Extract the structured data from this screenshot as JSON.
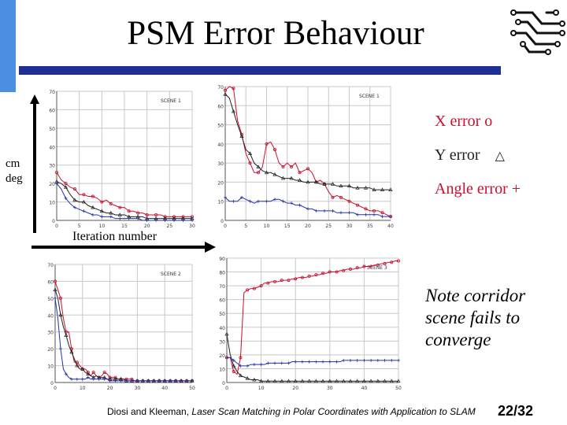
{
  "slide": {
    "title": "PSM Error Behaviour",
    "accent_color": "#4a8fe0",
    "bar_color": "#1f2f96",
    "legend": {
      "x_error": "X error o",
      "y_error": "Y error",
      "y_error_symbol": "△",
      "angle_error": "Angle error +"
    },
    "unit_label_line1": "cm",
    "unit_label_line2": "deg",
    "iteration_label": "Iteration number",
    "note": "Note corridor scene fails to converge",
    "footer_prefix": "Diosi and Kleeman, ",
    "footer_title": "Laser Scan Matching in Polar Coordinates with Application to SLAM",
    "page_number": "22/32",
    "logo_icon": "circuit-logo-icon"
  },
  "chart_data": [
    {
      "type": "line",
      "title": "SCENE 1",
      "x": [
        0,
        1,
        2,
        3,
        4,
        5,
        6,
        7,
        8,
        9,
        10,
        11,
        12,
        13,
        14,
        15,
        16,
        17,
        18,
        19,
        20,
        21,
        22,
        23,
        24,
        25,
        26,
        27,
        28,
        29,
        30
      ],
      "series": [
        {
          "name": "X error",
          "values": [
            26,
            22,
            20,
            18,
            17,
            14,
            14,
            13,
            13,
            12,
            10,
            11,
            9,
            8,
            7,
            7,
            5,
            5,
            4,
            4,
            3,
            3,
            3,
            3,
            2,
            2,
            2,
            2,
            2,
            2,
            2
          ]
        },
        {
          "name": "Y error",
          "values": [
            21,
            20,
            18,
            14,
            11,
            10,
            10,
            8,
            7,
            6,
            5,
            4,
            4,
            3,
            3,
            3,
            2,
            2,
            2,
            2,
            1,
            1,
            1,
            1,
            1,
            1,
            1,
            1,
            1,
            1,
            1
          ]
        },
        {
          "name": "Angle error",
          "values": [
            20,
            17,
            12,
            9,
            7,
            6,
            5,
            4,
            3,
            3,
            2,
            2,
            2,
            1,
            1,
            1,
            1,
            1,
            1,
            0,
            0,
            0,
            0,
            0,
            0,
            0,
            0,
            0,
            0,
            0,
            0
          ]
        }
      ],
      "ylim": [
        0,
        70
      ],
      "xticks": [
        "0",
        "5",
        "10",
        "15",
        "20",
        "25",
        "30"
      ],
      "yticks": [
        "0",
        "10",
        "20",
        "30",
        "40",
        "50",
        "60",
        "70"
      ],
      "grid": true
    },
    {
      "type": "line",
      "title": "SCENE 1",
      "x": [
        0,
        1,
        2,
        3,
        4,
        5,
        6,
        7,
        8,
        9,
        10,
        11,
        12,
        13,
        14,
        15,
        16,
        17,
        18,
        19,
        20,
        21,
        22,
        23,
        24,
        25,
        26,
        27,
        28,
        29,
        30,
        31,
        32,
        33,
        34,
        35,
        36,
        37,
        38,
        39,
        40
      ],
      "series": [
        {
          "name": "X error",
          "values": [
            68,
            70,
            69,
            52,
            45,
            35,
            30,
            25,
            25,
            28,
            40,
            41,
            37,
            30,
            28,
            30,
            28,
            30,
            25,
            26,
            27,
            25,
            20,
            21,
            19,
            15,
            12,
            13,
            12,
            11,
            10,
            9,
            8,
            7,
            6,
            5,
            5,
            5,
            4,
            3,
            2
          ]
        },
        {
          "name": "Y error",
          "values": [
            66,
            64,
            57,
            50,
            44,
            37,
            35,
            30,
            28,
            26,
            25,
            25,
            24,
            23,
            22,
            22,
            22,
            21,
            21,
            20,
            20,
            20,
            20,
            19,
            19,
            19,
            19,
            18,
            18,
            18,
            18,
            17,
            17,
            17,
            17,
            17,
            16,
            16,
            16,
            16,
            16
          ]
        },
        {
          "name": "Angle error",
          "values": [
            12,
            10,
            10,
            10,
            12,
            11,
            10,
            9,
            10,
            10,
            10,
            10,
            11,
            11,
            10,
            9,
            9,
            8,
            8,
            7,
            6,
            6,
            5,
            5,
            5,
            5,
            5,
            4,
            4,
            4,
            4,
            4,
            3,
            3,
            3,
            3,
            3,
            3,
            2,
            2,
            2
          ]
        }
      ],
      "ylim": [
        0,
        70
      ],
      "xticks": [
        "0",
        "5",
        "10",
        "15",
        "20",
        "25",
        "30",
        "35",
        "40"
      ],
      "yticks": [
        "0",
        "10",
        "20",
        "30",
        "40",
        "50",
        "60",
        "70"
      ],
      "grid": true
    },
    {
      "type": "line",
      "title": "SCENE 2",
      "x": [
        0,
        1,
        2,
        3,
        4,
        5,
        6,
        7,
        8,
        9,
        10,
        11,
        12,
        13,
        14,
        15,
        16,
        17,
        18,
        19,
        20,
        21,
        22,
        23,
        24,
        25,
        26,
        27,
        28,
        29,
        30,
        31,
        32,
        33,
        34,
        35,
        36,
        37,
        38,
        39,
        40,
        41,
        42,
        43,
        44,
        45,
        46,
        47,
        48,
        49,
        50
      ],
      "series": [
        {
          "name": "X error",
          "values": [
            60,
            55,
            50,
            38,
            30,
            30,
            20,
            12,
            12,
            10,
            8,
            8,
            6,
            4,
            6,
            4,
            3,
            4,
            6,
            5,
            3,
            3,
            3,
            2,
            2,
            2,
            2,
            2,
            2,
            1,
            1,
            1,
            1,
            1,
            1,
            1,
            1,
            1,
            1,
            1,
            1,
            1,
            1,
            1,
            1,
            1,
            1,
            1,
            1,
            1,
            1
          ]
        },
        {
          "name": "Y error",
          "values": [
            55,
            50,
            40,
            33,
            28,
            22,
            18,
            14,
            10,
            8,
            8,
            6,
            5,
            4,
            3,
            4,
            3,
            3,
            3,
            2,
            2,
            2,
            2,
            2,
            2,
            2,
            1,
            1,
            1,
            1,
            1,
            1,
            1,
            1,
            1,
            1,
            1,
            1,
            1,
            1,
            1,
            1,
            1,
            1,
            1,
            1,
            1,
            1,
            1,
            1,
            1
          ]
        },
        {
          "name": "Angle error",
          "values": [
            50,
            38,
            20,
            8,
            5,
            3,
            2,
            2,
            2,
            2,
            2,
            2,
            3,
            2,
            2,
            2,
            2,
            2,
            2,
            2,
            1,
            1,
            1,
            1,
            1,
            1,
            1,
            1,
            1,
            1,
            1,
            1,
            1,
            1,
            1,
            1,
            1,
            1,
            1,
            1,
            1,
            1,
            1,
            1,
            1,
            1,
            1,
            1,
            1,
            1,
            1
          ]
        }
      ],
      "ylim": [
        0,
        70
      ],
      "xticks": [
        "0",
        "10",
        "20",
        "30",
        "40",
        "50"
      ],
      "yticks": [
        "0",
        "10",
        "20",
        "30",
        "40",
        "50",
        "60",
        "70"
      ],
      "grid": true
    },
    {
      "type": "line",
      "title": "SCENE 3",
      "x": [
        0,
        1,
        2,
        3,
        4,
        5,
        6,
        7,
        8,
        9,
        10,
        11,
        12,
        13,
        14,
        15,
        16,
        17,
        18,
        19,
        20,
        21,
        22,
        23,
        24,
        25,
        26,
        27,
        28,
        29,
        30,
        31,
        32,
        33,
        34,
        35,
        36,
        37,
        38,
        39,
        40,
        41,
        42,
        43,
        44,
        45,
        46,
        47,
        48,
        49,
        50
      ],
      "series": [
        {
          "name": "X error",
          "values": [
            18,
            18,
            8,
            6,
            18,
            65,
            67,
            68,
            68,
            69,
            70,
            72,
            72,
            73,
            73,
            73,
            74,
            74,
            74,
            75,
            75,
            76,
            76,
            76,
            77,
            77,
            78,
            78,
            79,
            79,
            80,
            80,
            80,
            81,
            81,
            82,
            82,
            82,
            83,
            83,
            84,
            84,
            84,
            85,
            85,
            86,
            86,
            87,
            87,
            88,
            88
          ]
        },
        {
          "name": "Y error",
          "values": [
            35,
            20,
            12,
            8,
            5,
            4,
            3,
            2,
            2,
            2,
            1,
            1,
            1,
            1,
            1,
            1,
            1,
            1,
            1,
            1,
            1,
            1,
            1,
            1,
            1,
            1,
            1,
            1,
            1,
            1,
            1,
            1,
            1,
            1,
            1,
            1,
            1,
            1,
            1,
            1,
            1,
            1,
            1,
            1,
            1,
            1,
            1,
            1,
            1,
            1,
            1
          ]
        },
        {
          "name": "Angle error",
          "values": [
            18,
            18,
            16,
            14,
            12,
            12,
            12,
            13,
            13,
            13,
            13,
            13,
            14,
            14,
            14,
            14,
            14,
            14,
            14,
            15,
            15,
            15,
            15,
            15,
            15,
            15,
            15,
            15,
            15,
            15,
            15,
            15,
            15,
            15,
            16,
            16,
            16,
            16,
            16,
            16,
            16,
            16,
            16,
            16,
            16,
            16,
            16,
            16,
            16,
            16,
            16
          ]
        }
      ],
      "ylim": [
        0,
        90
      ],
      "xticks": [
        "0",
        "10",
        "20",
        "30",
        "40",
        "50"
      ],
      "yticks": [
        "0",
        "10",
        "20",
        "30",
        "40",
        "50",
        "60",
        "70",
        "80",
        "90"
      ],
      "grid": true
    }
  ]
}
